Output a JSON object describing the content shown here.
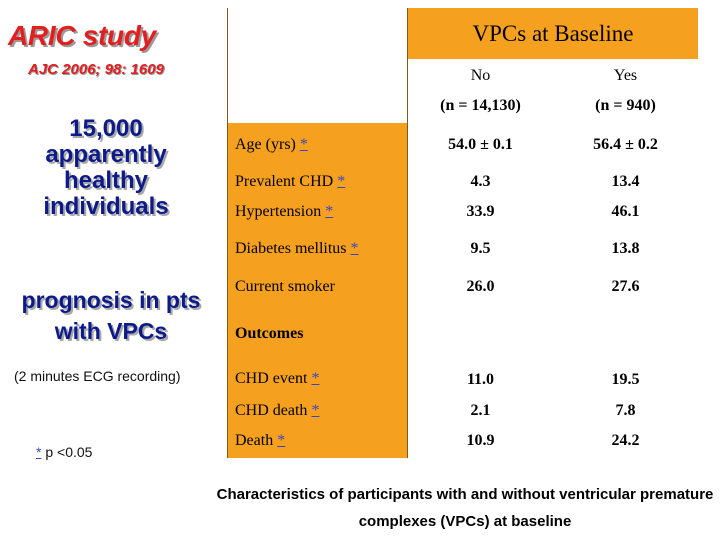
{
  "left": {
    "study_title": "ARIC study",
    "journal": "AJC 2006; 98: 1609",
    "population": "15,000 apparently healthy individuals",
    "prognosis": "prognosis in pts with VPCs",
    "ecg_note": "(2 minutes ECG recording)",
    "p_note_star": "*",
    "p_note_text": " p <0.05"
  },
  "table": {
    "header": "VPCs at Baseline",
    "col_no": "No",
    "col_yes": "Yes",
    "n_no": "(n = 14,130)",
    "n_yes": "(n = 940)",
    "rows": [
      {
        "label": "Age (yrs) ",
        "star": "*",
        "no": "54.0 ± 0.1",
        "yes": "56.4 ± 0.2"
      },
      {
        "label": "Prevalent CHD ",
        "star": "*",
        "no": "4.3",
        "yes": "13.4"
      },
      {
        "label": "Hypertension ",
        "star": "*",
        "no": "33.9",
        "yes": "46.1"
      },
      {
        "label": "Diabetes mellitus ",
        "star": "*",
        "no": "9.5",
        "yes": "13.8"
      },
      {
        "label": "Current smoker",
        "star": "",
        "no": "26.0",
        "yes": "27.6"
      }
    ],
    "outcomes_label": "Outcomes",
    "outcome_rows": [
      {
        "label": "CHD event ",
        "star": "*",
        "no": "11.0",
        "yes": "19.5"
      },
      {
        "label": "CHD death ",
        "star": "*",
        "no": "2.1",
        "yes": "7.8"
      },
      {
        "label": "Death ",
        "star": "*",
        "no": "10.9",
        "yes": "24.2"
      }
    ]
  },
  "caption": "Characteristics of participants with and without ventricular premature complexes (VPCs) at baseline",
  "colors": {
    "orange": "#f6a020",
    "title_red": "#e41e1e",
    "navy": "#0d1a8a",
    "link_blue": "#3b44c4"
  }
}
